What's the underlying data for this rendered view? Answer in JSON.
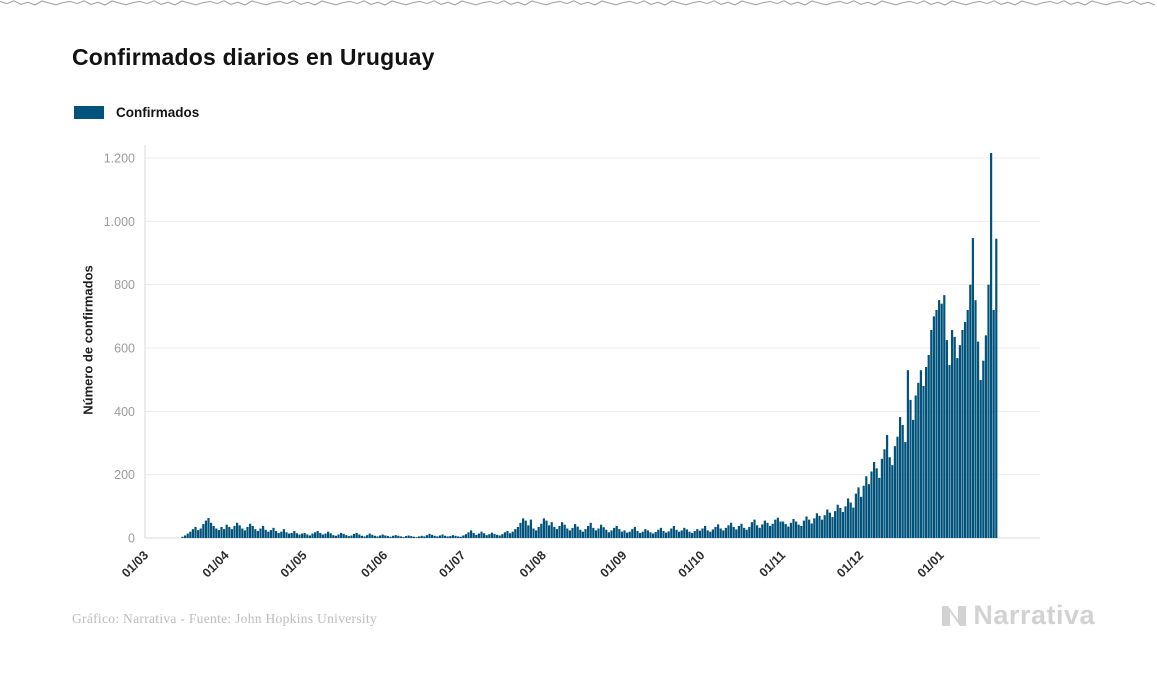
{
  "header": {
    "title": "Confirmados diarios en Uruguay"
  },
  "legend": {
    "label": "Confirmados"
  },
  "footer": {
    "credit": "Gráfico: Narrativa - Fuente: John Hopkins University",
    "brand": "Narrativa"
  },
  "colors": {
    "bar": "#02537C",
    "grid": "#ededed",
    "axis": "#d8d8d8",
    "y_tick_text": "#9c9c9c",
    "x_tick_text": "#2d2d2d",
    "brand_gray": "#d2d2d2",
    "title_text": "#121212"
  },
  "chart_data": {
    "type": "bar",
    "title": "Confirmados diarios en Uruguay",
    "xlabel": "",
    "ylabel": "Número de confirmados",
    "ylim": [
      0,
      1280
    ],
    "grid": true,
    "legend_position": "top-left",
    "bar_color": "#02537C",
    "x_unit": "day",
    "y_ticks": [
      {
        "value": 0,
        "label": "0"
      },
      {
        "value": 200,
        "label": "200"
      },
      {
        "value": 400,
        "label": "400"
      },
      {
        "value": 600,
        "label": "600"
      },
      {
        "value": 800,
        "label": "800"
      },
      {
        "value": 1000,
        "label": "1.000"
      },
      {
        "value": 1200,
        "label": "1.200"
      }
    ],
    "x_ticks": [
      {
        "label": "01/03",
        "day": 0
      },
      {
        "label": "01/04",
        "day": 31
      },
      {
        "label": "01/05",
        "day": 61
      },
      {
        "label": "01/06",
        "day": 92
      },
      {
        "label": "01/07",
        "day": 122
      },
      {
        "label": "01/08",
        "day": 153
      },
      {
        "label": "01/09",
        "day": 184
      },
      {
        "label": "01/10",
        "day": 214
      },
      {
        "label": "01/11",
        "day": 245
      },
      {
        "label": "01/12",
        "day": 275
      },
      {
        "label": "01/01",
        "day": 306
      }
    ],
    "series": [
      {
        "name": "Confirmados",
        "start_day_offset": 14,
        "values": [
          4,
          8,
          14,
          20,
          28,
          35,
          25,
          30,
          44,
          55,
          63,
          48,
          38,
          30,
          25,
          35,
          28,
          42,
          35,
          28,
          38,
          48,
          40,
          30,
          24,
          35,
          45,
          38,
          28,
          22,
          30,
          38,
          26,
          20,
          25,
          32,
          22,
          16,
          20,
          28,
          18,
          14,
          16,
          22,
          15,
          11,
          14,
          16,
          11,
          8,
          14,
          18,
          22,
          16,
          11,
          14,
          20,
          15,
          9,
          7,
          11,
          16,
          13,
          9,
          6,
          8,
          13,
          16,
          11,
          7,
          5,
          9,
          14,
          10,
          7,
          5,
          8,
          11,
          8,
          6,
          4,
          7,
          9,
          7,
          5,
          3,
          6,
          8,
          6,
          4,
          2,
          5,
          7,
          5,
          9,
          13,
          10,
          7,
          5,
          8,
          11,
          7,
          5,
          6,
          9,
          7,
          5,
          4,
          8,
          12,
          18,
          24,
          16,
          10,
          14,
          20,
          15,
          9,
          12,
          17,
          13,
          10,
          8,
          12,
          18,
          22,
          15,
          20,
          28,
          35,
          48,
          62,
          55,
          40,
          58,
          30,
          24,
          35,
          45,
          62,
          55,
          40,
          50,
          35,
          28,
          38,
          50,
          42,
          30,
          24,
          32,
          44,
          36,
          26,
          20,
          28,
          38,
          48,
          32,
          24,
          30,
          42,
          34,
          26,
          18,
          24,
          32,
          38,
          28,
          20,
          24,
          17,
          20,
          28,
          35,
          22,
          16,
          20,
          28,
          24,
          18,
          14,
          19,
          26,
          32,
          22,
          17,
          21,
          30,
          38,
          26,
          20,
          24,
          32,
          27,
          20,
          16,
          22,
          28,
          23,
          30,
          38,
          24,
          20,
          27,
          35,
          43,
          30,
          24,
          32,
          40,
          48,
          35,
          27,
          38,
          45,
          32,
          26,
          35,
          50,
          58,
          40,
          32,
          43,
          55,
          48,
          38,
          45,
          58,
          64,
          52,
          52,
          44,
          36,
          48,
          60,
          52,
          42,
          38,
          55,
          68,
          58,
          46,
          62,
          78,
          70,
          58,
          72,
          90,
          80,
          66,
          85,
          105,
          95,
          82,
          100,
          125,
          112,
          96,
          140,
          160,
          130,
          165,
          195,
          170,
          210,
          240,
          220,
          190,
          250,
          280,
          325,
          255,
          230,
          290,
          320,
          382,
          357,
          303,
          530,
          436,
          373,
          450,
          490,
          530,
          480,
          540,
          578,
          657,
          700,
          720,
          751,
          740,
          767,
          625,
          546,
          657,
          635,
          568,
          609,
          657,
          682,
          720,
          800,
          947,
          751,
          620,
          499,
          560,
          640,
          800,
          1216,
          720,
          945
        ]
      }
    ]
  }
}
